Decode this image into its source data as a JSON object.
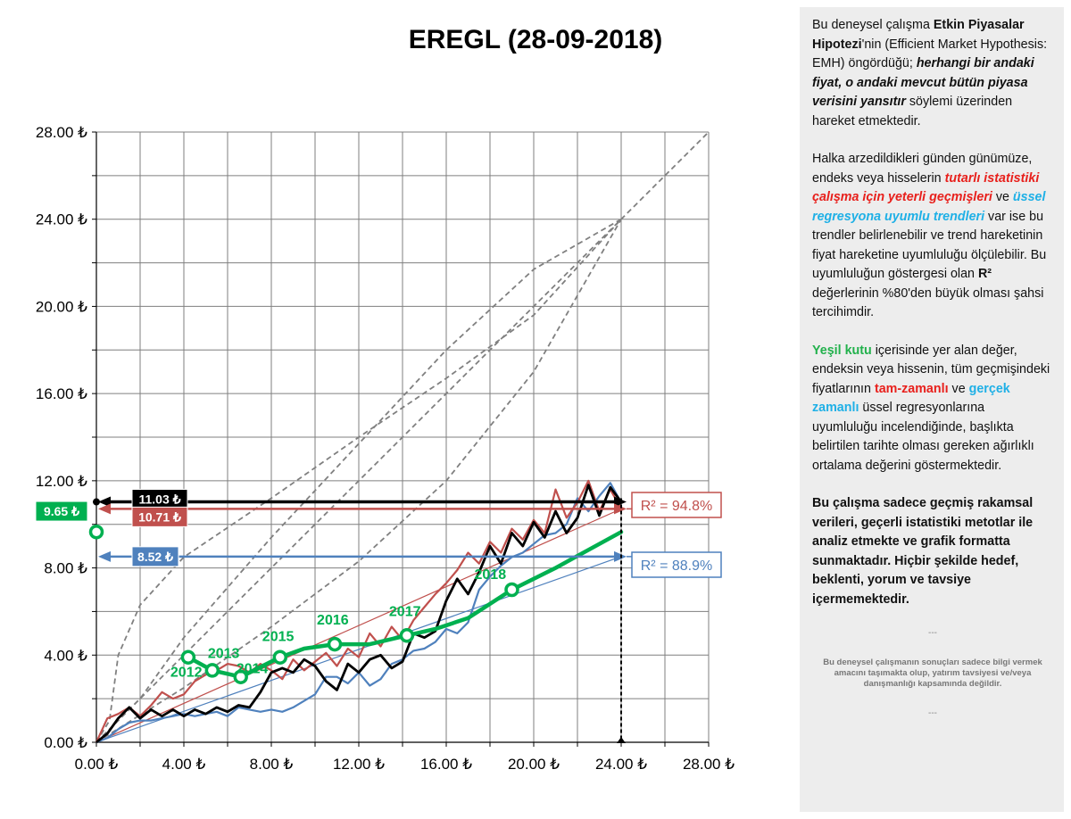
{
  "chart_data": {
    "type": "line",
    "title": "EREGL (28-09-2018)",
    "xlim": [
      0,
      28
    ],
    "ylim": [
      0,
      28
    ],
    "x_ticks": [
      "0.00 ₺",
      "4.00 ₺",
      "8.00 ₺",
      "12.00 ₺",
      "16.00 ₺",
      "20.00 ₺",
      "24.00 ₺",
      "28.00 ₺"
    ],
    "y_ticks": [
      "0.00 ₺",
      "4.00 ₺",
      "8.00 ₺",
      "12.00 ₺",
      "16.00 ₺",
      "20.00 ₺",
      "24.00 ₺",
      "28.00 ₺"
    ],
    "grid": true,
    "series": [
      {
        "color": "#000000",
        "values": [
          [
            0,
            0
          ],
          [
            0.5,
            0.4
          ],
          [
            1,
            1.1
          ],
          [
            1.5,
            1.6
          ],
          [
            2,
            1.1
          ],
          [
            2.5,
            1.5
          ],
          [
            3,
            1.2
          ],
          [
            3.5,
            1.5
          ],
          [
            4,
            1.2
          ],
          [
            4.5,
            1.5
          ],
          [
            5,
            1.3
          ],
          [
            5.5,
            1.6
          ],
          [
            6,
            1.4
          ],
          [
            6.5,
            1.7
          ],
          [
            7,
            1.6
          ],
          [
            7.5,
            2.3
          ],
          [
            8,
            3.2
          ],
          [
            8.5,
            3.4
          ],
          [
            9,
            3.2
          ],
          [
            9.5,
            3.8
          ],
          [
            10,
            3.5
          ],
          [
            10.5,
            2.8
          ],
          [
            11,
            2.4
          ],
          [
            11.5,
            3.6
          ],
          [
            12,
            3.2
          ],
          [
            12.5,
            3.8
          ],
          [
            13,
            4.0
          ],
          [
            13.5,
            3.4
          ],
          [
            14,
            3.7
          ],
          [
            14.5,
            5.0
          ],
          [
            15,
            4.8
          ],
          [
            15.5,
            5.1
          ],
          [
            16,
            6.5
          ],
          [
            16.5,
            7.5
          ],
          [
            17,
            6.8
          ],
          [
            17.5,
            7.8
          ],
          [
            18,
            9.0
          ],
          [
            18.5,
            8.2
          ],
          [
            19,
            9.6
          ],
          [
            19.5,
            9.0
          ],
          [
            20,
            10.1
          ],
          [
            20.5,
            9.4
          ],
          [
            21,
            10.6
          ],
          [
            21.5,
            9.6
          ],
          [
            22,
            10.3
          ],
          [
            22.5,
            11.8
          ],
          [
            23,
            10.4
          ],
          [
            23.5,
            11.7
          ],
          [
            24,
            11.03
          ]
        ]
      },
      {
        "color": "#c0504d",
        "values": [
          [
            0,
            0
          ],
          [
            0.5,
            1.1
          ],
          [
            1,
            1.3
          ],
          [
            1.5,
            1.6
          ],
          [
            2,
            1.2
          ],
          [
            2.5,
            1.7
          ],
          [
            3,
            2.3
          ],
          [
            3.5,
            2.0
          ],
          [
            4,
            2.2
          ],
          [
            4.5,
            2.8
          ],
          [
            5,
            3.1
          ],
          [
            5.5,
            3.3
          ],
          [
            6,
            3.6
          ],
          [
            6.5,
            3.5
          ],
          [
            7,
            3.2
          ],
          [
            7.5,
            3.6
          ],
          [
            8,
            3.3
          ],
          [
            8.5,
            2.9
          ],
          [
            9,
            3.8
          ],
          [
            9.5,
            3.3
          ],
          [
            10,
            3.7
          ],
          [
            10.5,
            4.1
          ],
          [
            11,
            3.5
          ],
          [
            11.5,
            4.3
          ],
          [
            12,
            3.9
          ],
          [
            12.5,
            5.0
          ],
          [
            13,
            4.4
          ],
          [
            13.5,
            5.3
          ],
          [
            14,
            4.7
          ],
          [
            14.5,
            5.6
          ],
          [
            15,
            6.2
          ],
          [
            15.5,
            6.8
          ],
          [
            16,
            7.3
          ],
          [
            16.5,
            7.9
          ],
          [
            17,
            8.7
          ],
          [
            17.5,
            8.2
          ],
          [
            18,
            9.2
          ],
          [
            18.5,
            8.7
          ],
          [
            19,
            9.8
          ],
          [
            19.5,
            9.3
          ],
          [
            20,
            10.2
          ],
          [
            20.5,
            9.6
          ],
          [
            21,
            11.6
          ],
          [
            21.5,
            10.3
          ],
          [
            22,
            11.0
          ],
          [
            22.5,
            12.0
          ],
          [
            23,
            10.6
          ],
          [
            23.5,
            11.6
          ],
          [
            24,
            10.71
          ]
        ]
      },
      {
        "color": "#4f81bd",
        "values": [
          [
            0,
            0
          ],
          [
            0.5,
            0.2
          ],
          [
            1,
            0.6
          ],
          [
            1.5,
            0.9
          ],
          [
            2,
            1.0
          ],
          [
            2.5,
            1.0
          ],
          [
            3,
            1.1
          ],
          [
            3.5,
            1.2
          ],
          [
            4,
            1.3
          ],
          [
            4.5,
            1.2
          ],
          [
            5,
            1.3
          ],
          [
            5.5,
            1.4
          ],
          [
            6,
            1.2
          ],
          [
            6.5,
            1.6
          ],
          [
            7,
            1.5
          ],
          [
            7.5,
            1.4
          ],
          [
            8,
            1.5
          ],
          [
            8.5,
            1.4
          ],
          [
            9,
            1.6
          ],
          [
            9.5,
            1.9
          ],
          [
            10,
            2.2
          ],
          [
            10.5,
            3.0
          ],
          [
            11,
            3.0
          ],
          [
            11.5,
            2.7
          ],
          [
            12,
            3.2
          ],
          [
            12.5,
            2.6
          ],
          [
            13,
            2.9
          ],
          [
            13.5,
            3.6
          ],
          [
            14,
            3.8
          ],
          [
            14.5,
            4.2
          ],
          [
            15,
            4.3
          ],
          [
            15.5,
            4.6
          ],
          [
            16,
            5.2
          ],
          [
            16.5,
            5.0
          ],
          [
            17,
            5.5
          ],
          [
            17.5,
            7.0
          ],
          [
            18,
            7.6
          ],
          [
            18.5,
            8.1
          ],
          [
            19,
            8.5
          ],
          [
            19.5,
            8.7
          ],
          [
            20,
            9.1
          ],
          [
            20.5,
            9.5
          ],
          [
            21,
            9.6
          ],
          [
            21.5,
            10.0
          ],
          [
            22,
            11.2
          ],
          [
            22.5,
            10.6
          ],
          [
            23,
            11.3
          ],
          [
            23.5,
            11.9
          ],
          [
            24,
            11.0
          ]
        ]
      },
      {
        "color": "#00b050",
        "values": [
          [
            4.2,
            3.9
          ],
          [
            5.3,
            3.3
          ],
          [
            6.6,
            3.0
          ],
          [
            8.4,
            3.9
          ],
          [
            9.5,
            4.3
          ],
          [
            10.9,
            4.5
          ],
          [
            12.5,
            4.5
          ],
          [
            14.2,
            4.9
          ],
          [
            15.5,
            5.2
          ],
          [
            17,
            5.7
          ],
          [
            19,
            7.0
          ],
          [
            21,
            8.0
          ],
          [
            24,
            9.65
          ]
        ]
      }
    ],
    "trendlines": [
      {
        "color": "#c0504d",
        "from": [
          0,
          0
        ],
        "to": [
          24,
          10.71
        ]
      },
      {
        "color": "#4f81bd",
        "from": [
          0,
          0
        ],
        "to": [
          24,
          8.52
        ]
      }
    ],
    "guide_lines": [
      {
        "color": "#808080",
        "values": [
          [
            0,
            0
          ],
          [
            0.6,
            1.0
          ],
          [
            1,
            4.0
          ],
          [
            2,
            6.3
          ],
          [
            4,
            8.5
          ],
          [
            8,
            11.2
          ],
          [
            12,
            14.0
          ],
          [
            16,
            16.7
          ],
          [
            20,
            19.6
          ],
          [
            24,
            24.0
          ]
        ]
      },
      {
        "color": "#808080",
        "values": [
          [
            0,
            0
          ],
          [
            2,
            2.0
          ],
          [
            4,
            4.8
          ],
          [
            8,
            9.4
          ],
          [
            12,
            13.7
          ],
          [
            16,
            18.0
          ],
          [
            20,
            21.7
          ],
          [
            24,
            24.0
          ]
        ]
      },
      {
        "color": "#808080",
        "values": [
          [
            0,
            0
          ],
          [
            4,
            2.5
          ],
          [
            8,
            5.3
          ],
          [
            12,
            8.3
          ],
          [
            16,
            12.0
          ],
          [
            20,
            17.0
          ],
          [
            24,
            24.0
          ]
        ]
      },
      {
        "color": "#808080",
        "values": [
          [
            0,
            0
          ],
          [
            28,
            28
          ]
        ]
      }
    ],
    "year_markers": [
      {
        "label": "2012",
        "x": 4.2,
        "y": 3.9
      },
      {
        "label": "2013",
        "x": 5.3,
        "y": 3.3
      },
      {
        "label": "2014",
        "x": 6.6,
        "y": 3.0
      },
      {
        "label": "2015",
        "x": 8.4,
        "y": 3.9
      },
      {
        "label": "2016",
        "x": 10.9,
        "y": 4.5
      },
      {
        "label": "2017",
        "x": 14.2,
        "y": 4.9
      },
      {
        "label": "2018",
        "x": 19.0,
        "y": 7.0
      }
    ],
    "value_labels": [
      {
        "text": "11.03 ₺",
        "value": 11.03,
        "color": "#000000"
      },
      {
        "text": "10.71 ₺",
        "value": 10.71,
        "color": "#c0504d"
      },
      {
        "text": "8.52 ₺",
        "value": 8.52,
        "color": "#4f81bd"
      },
      {
        "text": "9.65 ₺",
        "value": 9.65,
        "color": "#00b050"
      }
    ],
    "r2_labels": [
      {
        "text": "R² = 94.8%",
        "color": "#c0504d"
      },
      {
        "text": "R² = 88.9%",
        "color": "#4f81bd"
      }
    ],
    "marker_x": 24
  },
  "sidebar": {
    "p1": [
      "Bu deneysel çalışma ",
      "Etkin Piyasalar Hipotezi",
      "'nin (Efficient Market Hypothesis: EMH) öngördüğü; ",
      "herhangi bir andaki fiyat, o andaki mevcut bütün piyasa verisini yansıtır",
      "  söylemi üzerinden hareket etmektedir."
    ],
    "p2": [
      "Halka arzedildikleri günden günümüze, endeks veya hisselerin ",
      "tutarlı istatistiki çalışma için yeterli geçmişleri",
      " ve ",
      "üssel regresyona uyumlu trendleri",
      " var ise bu trendler belirlenebilir ve trend hareketinin fiyat hareketine uyumluluğu ölçülebilir.  Bu uyumluluğun göstergesi olan ",
      "R²",
      " değerlerinin %80'den büyük olması şahsi tercihimdir."
    ],
    "p3": [
      "Yeşil kutu",
      " içerisinde yer alan değer, endeksin veya hissenin, tüm geçmişindeki fiyatlarının ",
      "tam-zamanlı",
      " ve ",
      "gerçek zamanlı",
      " üssel regresyonlarına uyumluluğu incelendiğinde, başlıkta belirtilen tarihte olması gereken ağırlıklı ortalama değerini göstermektedir."
    ],
    "p4": "Bu çalışma sadece geçmiş rakamsal verileri, geçerli istatistiki metotlar ile  analiz etmekte ve grafik formatta sunmaktadır. Hiçbir şekilde hedef, beklenti, yorum ve tavsiye içermemektedir.",
    "separator": "---",
    "disclaimer": "Bu deneysel çalışmanın sonuçları sadece bilgi vermek amacını taşımakta olup, yatırım tavsiyesi ve/veya danışmanlığı kapsamında değildir.",
    "separator2": "---"
  }
}
